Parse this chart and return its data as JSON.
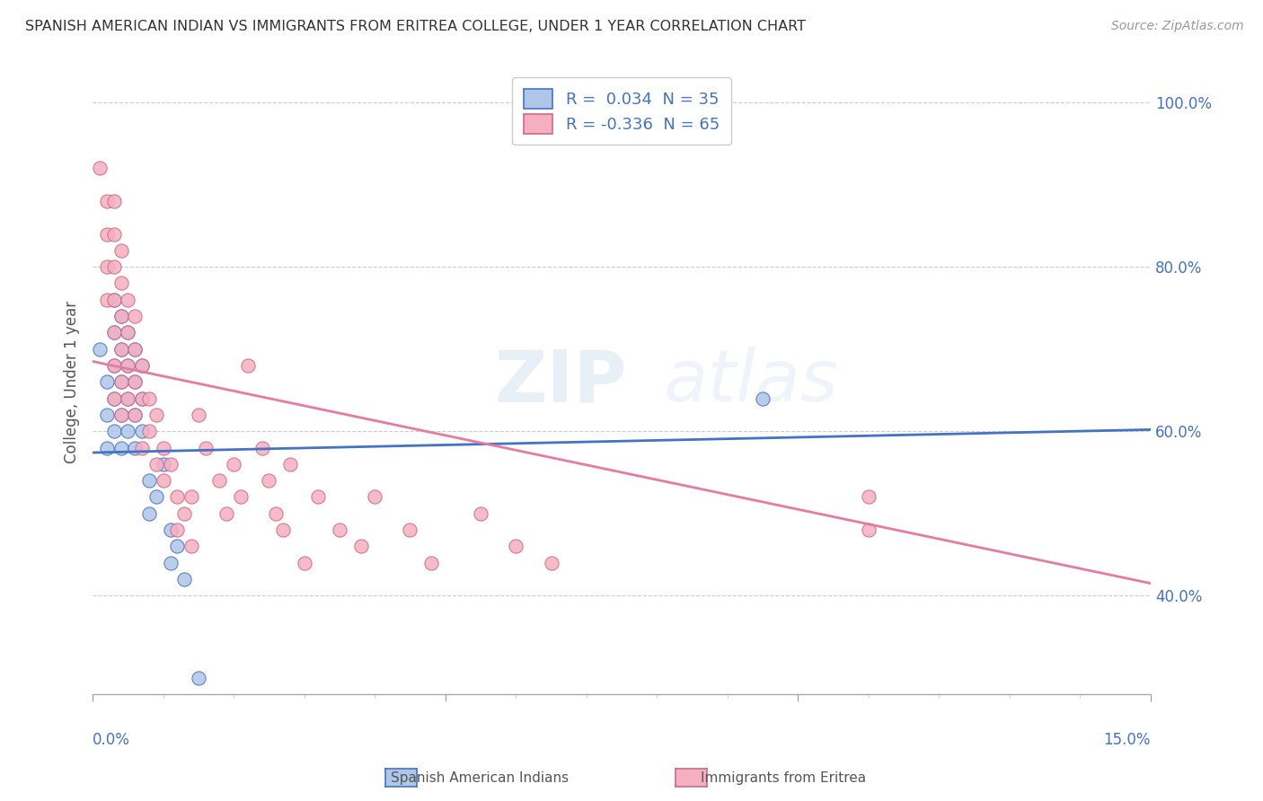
{
  "title": "SPANISH AMERICAN INDIAN VS IMMIGRANTS FROM ERITREA COLLEGE, UNDER 1 YEAR CORRELATION CHART",
  "source": "Source: ZipAtlas.com",
  "ylabel": "College, Under 1 year",
  "xmin": 0.0,
  "xmax": 0.15,
  "ymin": 0.28,
  "ymax": 1.04,
  "yticks": [
    0.4,
    0.6,
    0.8,
    1.0
  ],
  "ytick_labels": [
    "40.0%",
    "60.0%",
    "80.0%",
    "100.0%"
  ],
  "r1": 0.034,
  "r2": -0.336,
  "n1": 35,
  "n2": 65,
  "color_blue": "#aec6e8",
  "color_pink": "#f4afc0",
  "line_blue": "#4472C4",
  "line_pink": "#e87aa0",
  "blue_line_y0": 0.574,
  "blue_line_y1": 0.602,
  "pink_line_y0": 0.685,
  "pink_line_y1": 0.415,
  "blue_points": [
    [
      0.001,
      0.7
    ],
    [
      0.002,
      0.66
    ],
    [
      0.002,
      0.62
    ],
    [
      0.002,
      0.58
    ],
    [
      0.003,
      0.76
    ],
    [
      0.003,
      0.72
    ],
    [
      0.003,
      0.68
    ],
    [
      0.003,
      0.64
    ],
    [
      0.003,
      0.6
    ],
    [
      0.004,
      0.74
    ],
    [
      0.004,
      0.7
    ],
    [
      0.004,
      0.66
    ],
    [
      0.004,
      0.62
    ],
    [
      0.004,
      0.58
    ],
    [
      0.005,
      0.72
    ],
    [
      0.005,
      0.68
    ],
    [
      0.005,
      0.64
    ],
    [
      0.005,
      0.6
    ],
    [
      0.006,
      0.7
    ],
    [
      0.006,
      0.66
    ],
    [
      0.006,
      0.62
    ],
    [
      0.006,
      0.58
    ],
    [
      0.007,
      0.68
    ],
    [
      0.007,
      0.64
    ],
    [
      0.007,
      0.6
    ],
    [
      0.008,
      0.54
    ],
    [
      0.008,
      0.5
    ],
    [
      0.009,
      0.52
    ],
    [
      0.01,
      0.56
    ],
    [
      0.011,
      0.48
    ],
    [
      0.011,
      0.44
    ],
    [
      0.012,
      0.46
    ],
    [
      0.013,
      0.42
    ],
    [
      0.015,
      0.3
    ],
    [
      0.095,
      0.64
    ]
  ],
  "pink_points": [
    [
      0.001,
      0.92
    ],
    [
      0.002,
      0.88
    ],
    [
      0.002,
      0.84
    ],
    [
      0.002,
      0.8
    ],
    [
      0.002,
      0.76
    ],
    [
      0.003,
      0.88
    ],
    [
      0.003,
      0.84
    ],
    [
      0.003,
      0.8
    ],
    [
      0.003,
      0.76
    ],
    [
      0.003,
      0.72
    ],
    [
      0.003,
      0.68
    ],
    [
      0.003,
      0.64
    ],
    [
      0.004,
      0.82
    ],
    [
      0.004,
      0.78
    ],
    [
      0.004,
      0.74
    ],
    [
      0.004,
      0.7
    ],
    [
      0.004,
      0.66
    ],
    [
      0.004,
      0.62
    ],
    [
      0.005,
      0.76
    ],
    [
      0.005,
      0.72
    ],
    [
      0.005,
      0.68
    ],
    [
      0.005,
      0.64
    ],
    [
      0.006,
      0.74
    ],
    [
      0.006,
      0.7
    ],
    [
      0.006,
      0.66
    ],
    [
      0.006,
      0.62
    ],
    [
      0.007,
      0.68
    ],
    [
      0.007,
      0.64
    ],
    [
      0.007,
      0.58
    ],
    [
      0.008,
      0.64
    ],
    [
      0.008,
      0.6
    ],
    [
      0.009,
      0.62
    ],
    [
      0.009,
      0.56
    ],
    [
      0.01,
      0.58
    ],
    [
      0.01,
      0.54
    ],
    [
      0.011,
      0.56
    ],
    [
      0.012,
      0.52
    ],
    [
      0.012,
      0.48
    ],
    [
      0.013,
      0.5
    ],
    [
      0.014,
      0.52
    ],
    [
      0.014,
      0.46
    ],
    [
      0.015,
      0.62
    ],
    [
      0.016,
      0.58
    ],
    [
      0.018,
      0.54
    ],
    [
      0.019,
      0.5
    ],
    [
      0.02,
      0.56
    ],
    [
      0.021,
      0.52
    ],
    [
      0.022,
      0.68
    ],
    [
      0.024,
      0.58
    ],
    [
      0.025,
      0.54
    ],
    [
      0.026,
      0.5
    ],
    [
      0.027,
      0.48
    ],
    [
      0.028,
      0.56
    ],
    [
      0.03,
      0.44
    ],
    [
      0.032,
      0.52
    ],
    [
      0.035,
      0.48
    ],
    [
      0.038,
      0.46
    ],
    [
      0.04,
      0.52
    ],
    [
      0.045,
      0.48
    ],
    [
      0.048,
      0.44
    ],
    [
      0.055,
      0.5
    ],
    [
      0.06,
      0.46
    ],
    [
      0.065,
      0.44
    ],
    [
      0.11,
      0.52
    ],
    [
      0.11,
      0.48
    ]
  ]
}
